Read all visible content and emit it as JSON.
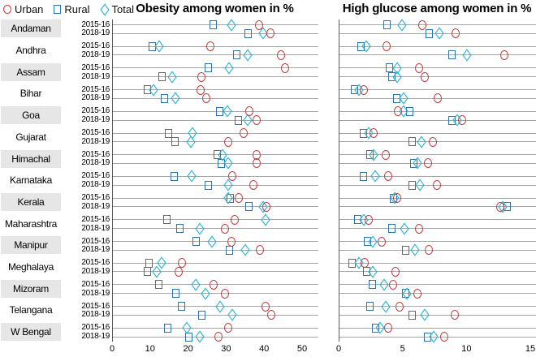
{
  "legend": {
    "items": [
      {
        "label": "Urban",
        "marker": "circle",
        "color": "#c2393d"
      },
      {
        "label": "Rural",
        "marker": "square",
        "color": "#2e74b5"
      },
      {
        "label": "Total",
        "marker": "diamond",
        "color": "#27b4d8"
      }
    ]
  },
  "states": [
    "Andaman",
    "Andhra",
    "Assam",
    "Bihar",
    "Goa",
    "Gujarat",
    "Himachal",
    "Karnataka",
    "Kerala",
    "Maharashtra",
    "Manipur",
    "Meghalaya",
    "Mizoram",
    "Telangana",
    "W Bengal"
  ],
  "years": [
    "2015-16",
    "2018-19"
  ],
  "row_order_note": "values arrays are ordered state-major: Andaman 2015-16, Andaman 2018-19, Andhra 2015-16, ...",
  "chart_data": [
    {
      "type": "scatter",
      "title": "Obesity among women in %",
      "xlim": [
        0,
        50
      ],
      "xticks": [
        0,
        10,
        20,
        30,
        40,
        50
      ],
      "grid": "horizontal",
      "legend_position": "top-left",
      "series": [
        {
          "name": "Urban",
          "marker": "circle",
          "color": "#c2393d",
          "values": [
            38.5,
            41.5,
            25.7,
            44.3,
            45.3,
            23.2,
            23.1,
            24.5,
            36.0,
            37.9,
            34.3,
            30.3,
            37.8,
            37.8,
            31.4,
            37.0,
            33.2,
            40.3,
            32.1,
            29.5,
            31.2,
            38.7,
            18.1,
            17.4,
            26.4,
            29.4,
            40.2,
            41.6,
            30.3,
            27.8
          ]
        },
        {
          "name": "Rural",
          "marker": "square",
          "color": "#2e74b5",
          "values": [
            26.4,
            35.5,
            10.3,
            32.5,
            25.2,
            12.9,
            9.0,
            13.6,
            28.1,
            33.0,
            14.7,
            16.3,
            27.4,
            28.6,
            16.1,
            25.2,
            30.9,
            35.7,
            14.3,
            17.7,
            21.9,
            30.7,
            9.6,
            9.0,
            12.0,
            16.5,
            18.1,
            23.4,
            14.4,
            20.0
          ]
        },
        {
          "name": "Total",
          "marker": "diamond",
          "color": "#27b4d8",
          "values": [
            31.2,
            39.6,
            12.2,
            35.5,
            30.5,
            15.6,
            10.7,
            16.4,
            30.2,
            35.5,
            20.9,
            20.5,
            28.9,
            30.3,
            20.7,
            30.3,
            30.4,
            39.5,
            40.2,
            22.9,
            26.1,
            34.8,
            12.9,
            11.5,
            21.7,
            24.3,
            28.2,
            31.4,
            19.4,
            22.8
          ]
        }
      ]
    },
    {
      "type": "scatter",
      "title": "High glucose among women in %",
      "xlim": [
        0,
        15
      ],
      "xticks": [
        0,
        5,
        10,
        15
      ],
      "grid": "horizontal",
      "legend_position": "shared-top-left",
      "series": [
        {
          "name": "Urban",
          "marker": "circle",
          "color": "#c2393d",
          "values": [
            6.5,
            9.1,
            3.7,
            12.9,
            6.2,
            6.7,
            1.9,
            7.7,
            4.6,
            9.6,
            2.7,
            7.3,
            3.6,
            6.9,
            3.8,
            7.6,
            4.5,
            12.6,
            2.3,
            6.2,
            3.3,
            7.0,
            2.0,
            4.4,
            4.2,
            6.1,
            4.7,
            9.0,
            3.8,
            8.2
          ]
        },
        {
          "name": "Rural",
          "marker": "square",
          "color": "#2e74b5",
          "values": [
            3.7,
            7.0,
            1.7,
            8.8,
            3.9,
            4.1,
            1.2,
            4.5,
            5.5,
            8.8,
            1.9,
            5.7,
            2.4,
            5.8,
            1.9,
            5.7,
            4.2,
            13.1,
            1.4,
            4.1,
            2.2,
            5.2,
            1.0,
            2.1,
            2.6,
            5.2,
            2.4,
            5.7,
            2.8,
            6.9
          ]
        },
        {
          "name": "Total",
          "marker": "diamond",
          "color": "#27b4d8",
          "values": [
            4.9,
            7.8,
            2.1,
            10.0,
            4.5,
            4.5,
            1.5,
            5.0,
            5.0,
            9.2,
            2.3,
            6.4,
            2.7,
            6.1,
            2.8,
            6.3,
            4.3,
            12.8,
            1.9,
            5.1,
            2.6,
            5.9,
            1.5,
            2.6,
            3.5,
            5.3,
            3.6,
            6.7,
            3.2,
            7.4
          ]
        }
      ]
    }
  ],
  "style_colors": {
    "gridline": "#a6a6a6",
    "axis": "#595959",
    "state_box_shaded": "#e6e6e6",
    "state_box_plain": "#ffffff"
  }
}
